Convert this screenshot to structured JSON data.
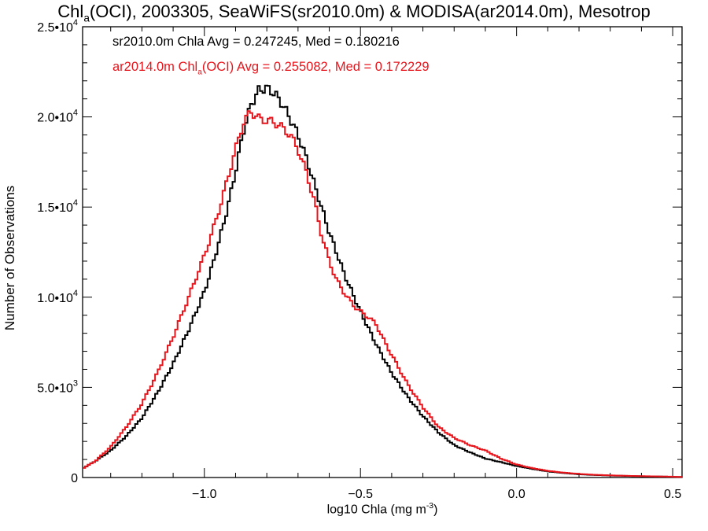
{
  "chart_data": {
    "type": "line",
    "title_main": "Chl",
    "title_sub": "a",
    "title_rest": "(OCI), 2003305, SeaWiFS(sr2010.0m) & MODISA(ar2014.0m), Mesotrop",
    "xlabel_main": "log10 Chla (mg m",
    "xlabel_sup": "-3",
    "xlabel_end": ")",
    "ylabel": "Number of Observations",
    "xlim": [
      -1.39,
      0.53
    ],
    "ylim": [
      0,
      25000
    ],
    "xticks": [
      {
        "value": -1.0,
        "label": "−1.0"
      },
      {
        "value": -0.5,
        "label": "−0.5"
      },
      {
        "value": 0.0,
        "label": "0.0"
      },
      {
        "value": 0.5,
        "label": "0.5"
      }
    ],
    "yticks": [
      {
        "value": 0,
        "mantissa": "0",
        "exp": ""
      },
      {
        "value": 5000,
        "mantissa": "5.0•10",
        "exp": "3"
      },
      {
        "value": 10000,
        "mantissa": "1.0•10",
        "exp": "4"
      },
      {
        "value": 15000,
        "mantissa": "1.5•10",
        "exp": "4"
      },
      {
        "value": 20000,
        "mantissa": "2.0•10",
        "exp": "4"
      },
      {
        "value": 25000,
        "mantissa": "2.5•10",
        "exp": "4"
      }
    ],
    "legend": {
      "black_text": "sr2010.0m Chla Avg = 0.247245, Med = 0.180216",
      "red_pre": "ar2014.0m Chl",
      "red_sub": "a",
      "red_post": "(OCI) Avg = 0.255082, Med = 0.172229"
    },
    "series": [
      {
        "color": "#000000",
        "x": [
          -1.39,
          -1.35,
          -1.3,
          -1.25,
          -1.2,
          -1.15,
          -1.1,
          -1.05,
          -1.0,
          -0.975,
          -0.95,
          -0.925,
          -0.9,
          -0.875,
          -0.85,
          -0.825,
          -0.8,
          -0.775,
          -0.75,
          -0.725,
          -0.7,
          -0.675,
          -0.65,
          -0.625,
          -0.6,
          -0.575,
          -0.55,
          -0.525,
          -0.5,
          -0.475,
          -0.45,
          -0.425,
          -0.4,
          -0.35,
          -0.3,
          -0.25,
          -0.2,
          -0.15,
          -0.1,
          -0.05,
          0.0,
          0.05,
          0.1,
          0.15,
          0.2,
          0.25,
          0.3,
          0.35,
          0.4,
          0.45,
          0.5,
          0.53
        ],
        "y": [
          500,
          900,
          1500,
          2300,
          3300,
          4700,
          6300,
          8200,
          10300,
          11700,
          13300,
          15000,
          17000,
          19200,
          20700,
          21500,
          21600,
          21300,
          20700,
          19900,
          19000,
          17800,
          16400,
          15000,
          13600,
          12400,
          11200,
          10200,
          9200,
          8300,
          7400,
          6600,
          5800,
          4500,
          3400,
          2500,
          1800,
          1400,
          1050,
          850,
          640,
          480,
          340,
          250,
          180,
          140,
          110,
          90,
          70,
          55,
          40,
          30
        ]
      },
      {
        "color": "#e8141b",
        "x": [
          -1.39,
          -1.35,
          -1.3,
          -1.25,
          -1.2,
          -1.15,
          -1.1,
          -1.05,
          -1.0,
          -0.975,
          -0.95,
          -0.925,
          -0.9,
          -0.875,
          -0.85,
          -0.825,
          -0.8,
          -0.775,
          -0.75,
          -0.725,
          -0.7,
          -0.675,
          -0.65,
          -0.625,
          -0.6,
          -0.575,
          -0.55,
          -0.525,
          -0.5,
          -0.475,
          -0.45,
          -0.425,
          -0.4,
          -0.35,
          -0.3,
          -0.25,
          -0.2,
          -0.15,
          -0.1,
          -0.05,
          0.0,
          0.05,
          0.1,
          0.15,
          0.2,
          0.25,
          0.3,
          0.35,
          0.4,
          0.45,
          0.5,
          0.53
        ],
        "y": [
          500,
          900,
          1700,
          2800,
          4100,
          5800,
          7800,
          10000,
          12300,
          13600,
          15000,
          16600,
          18200,
          19700,
          20300,
          19900,
          19800,
          19700,
          19400,
          19000,
          18200,
          17000,
          15500,
          13500,
          12000,
          10900,
          10200,
          9600,
          9200,
          8900,
          8500,
          7600,
          6800,
          5200,
          3900,
          2800,
          2200,
          1800,
          1500,
          1050,
          720,
          520,
          370,
          270,
          200,
          150,
          120,
          95,
          75,
          60,
          45,
          30
        ]
      }
    ]
  }
}
